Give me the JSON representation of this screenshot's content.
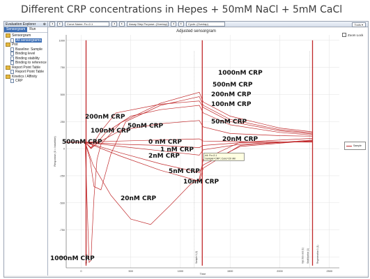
{
  "page_title": "Different CRP concentrations in Hepes + 50mM NaCl + 5mM CaCl",
  "explorer": {
    "title": "Evaluation Explorer",
    "tabs": [
      "Sensorgram",
      "Run"
    ],
    "items": [
      {
        "label": "Sensorgram",
        "level": 0,
        "icon": "folder-icon"
      },
      {
        "label": "All sensorgrams",
        "level": 1,
        "icon": "document-icon",
        "selected": true
      },
      {
        "label": "Plot",
        "level": 0,
        "icon": "folder-icon"
      },
      {
        "label": "Baseline: Sample",
        "level": 1,
        "icon": "document-icon"
      },
      {
        "label": "Binding level",
        "level": 1,
        "icon": "document-icon"
      },
      {
        "label": "Binding stability",
        "level": 1,
        "icon": "document-icon"
      },
      {
        "label": "Binding to reference",
        "level": 1,
        "icon": "document-icon"
      },
      {
        "label": "Report Point Table",
        "level": 0,
        "icon": "folder-icon"
      },
      {
        "label": "Report Point Table",
        "level": 1,
        "icon": "document-icon"
      },
      {
        "label": "Kinetics / Affinity",
        "level": 0,
        "icon": "folder-icon"
      },
      {
        "label": "CRP",
        "level": 1,
        "icon": "document-icon"
      }
    ]
  },
  "toolbar": {
    "curve_name": "Curve Name: Fc=2-1",
    "assay_step": "Assay Step Purpose: (Overlap)",
    "cycle": "Cycle: (Overlap)",
    "tools": "Tools ▾"
  },
  "chart": {
    "title": "Adjusted sensorgram",
    "zoom_lock_label": "Zoom Lock",
    "legend_label": "Sample",
    "tooltip_line1": "#4: Fc=2-1",
    "tooltip_line2": "Sample=CRP; Conc=20 nM",
    "event_marker_labels": [
      "Start 1 (1)",
      "Sample 1 (1)",
      "Injection end (1)",
      "Stabilization (1)",
      "Regeneration 1 (1)"
    ]
  },
  "annotations": [
    {
      "text": "1000nM CRP"
    },
    {
      "text": "500nM CRP"
    },
    {
      "text": "200nM CRP"
    },
    {
      "text": "100nM CRP"
    },
    {
      "text": "200nM CRP"
    },
    {
      "text": "50nM CRP"
    },
    {
      "text": "100nM CRP"
    },
    {
      "text": "50nM CRP"
    },
    {
      "text": "500nM CRP"
    },
    {
      "text": "0 nM CRP"
    },
    {
      "text": "20nM CRP"
    },
    {
      "text": "1 nM CRP"
    },
    {
      "text": "2nM CRP"
    },
    {
      "text": "5nM CRP"
    },
    {
      "text": "10nM CRP"
    },
    {
      "text": "20nM CRP"
    },
    {
      "text": "1000nM CRP"
    }
  ],
  "chart_data": {
    "type": "line",
    "title": "Adjusted sensorgram",
    "xlabel": "Time",
    "ylabel": "Response (0 = baseline)",
    "xlim": [
      -150,
      2600
    ],
    "ylim": [
      -1100,
      1050
    ],
    "x_ticks": [
      0,
      500,
      1000,
      1500,
      2000,
      2500
    ],
    "y_ticks": [
      -1000,
      -750,
      -500,
      -250,
      0,
      250,
      500,
      750,
      1000
    ],
    "y_tick_labels": [
      "-1000",
      "-750",
      "-500",
      "-250",
      "0",
      "250",
      "500",
      "750",
      "1000"
    ],
    "series": [
      {
        "name": "1000nM CRP",
        "x": [
          -150,
          40,
          80,
          100,
          110,
          130,
          160,
          200,
          400,
          800,
          1190,
          1230,
          1500,
          2000,
          2330
        ],
        "y": [
          60,
          60,
          -1050,
          -1030,
          -800,
          -450,
          -100,
          40,
          240,
          420,
          520,
          430,
          300,
          190,
          155
        ]
      },
      {
        "name": "500nM CRP",
        "x": [
          -150,
          40,
          90,
          130,
          200,
          300,
          450,
          800,
          1190,
          1230,
          1500,
          2000,
          2330
        ],
        "y": [
          60,
          60,
          -100,
          -350,
          -380,
          -50,
          250,
          400,
          480,
          400,
          270,
          175,
          145
        ]
      },
      {
        "name": "200nM CRP",
        "x": [
          -150,
          40,
          100,
          140,
          200,
          350,
          800,
          1190,
          1230,
          1500,
          2000,
          2330
        ],
        "y": [
          60,
          60,
          5,
          70,
          160,
          330,
          410,
          440,
          380,
          250,
          165,
          135
        ]
      },
      {
        "name": "100nM CRP",
        "x": [
          -150,
          40,
          100,
          150,
          250,
          500,
          800,
          1190,
          1230,
          1500,
          2000,
          2330
        ],
        "y": [
          60,
          60,
          0,
          40,
          150,
          300,
          360,
          400,
          330,
          220,
          150,
          125
        ]
      },
      {
        "name": "50nM CRP",
        "x": [
          -150,
          40,
          100,
          200,
          400,
          800,
          1190,
          1230,
          1500,
          2000,
          2330
        ],
        "y": [
          60,
          60,
          10,
          70,
          170,
          230,
          260,
          200,
          140,
          120,
          115
        ]
      },
      {
        "name": "20nM CRP",
        "x": [
          -150,
          40,
          120,
          300,
          500,
          700,
          900,
          1100,
          1190,
          1230,
          1600,
          2330
        ],
        "y": [
          60,
          60,
          -150,
          -430,
          -650,
          -700,
          -520,
          -330,
          -280,
          -100,
          60,
          95
        ]
      },
      {
        "name": "10nM CRP",
        "x": [
          -150,
          40,
          400,
          800,
          1190,
          1230,
          1600,
          2330
        ],
        "y": [
          60,
          60,
          -70,
          -200,
          -300,
          -180,
          30,
          80
        ]
      },
      {
        "name": "5nM CRP",
        "x": [
          -150,
          40,
          400,
          800,
          1190,
          1230,
          1600,
          2330
        ],
        "y": [
          60,
          60,
          -40,
          -140,
          -220,
          -150,
          20,
          75
        ]
      },
      {
        "name": "2nM CRP",
        "x": [
          -150,
          40,
          400,
          800,
          1190,
          1230,
          1600,
          2330
        ],
        "y": [
          60,
          60,
          20,
          -20,
          -60,
          -10,
          40,
          70
        ]
      },
      {
        "name": "1 nM CRP",
        "x": [
          -150,
          40,
          400,
          800,
          1190,
          1230,
          1600,
          2330
        ],
        "y": [
          60,
          60,
          40,
          30,
          10,
          30,
          55,
          65
        ]
      },
      {
        "name": "0 nM CRP",
        "x": [
          -150,
          40,
          400,
          800,
          1190,
          1230,
          1600,
          2330
        ],
        "y": [
          60,
          60,
          70,
          80,
          90,
          70,
          65,
          60
        ]
      }
    ],
    "event_lines_x": [
      50,
      1220,
      2330
    ],
    "marker_x": [
      1140,
      2300
    ]
  },
  "colors": {
    "trace": "#c0282a",
    "grid": "#e2e2e2",
    "selection": "#3d6fb6"
  }
}
